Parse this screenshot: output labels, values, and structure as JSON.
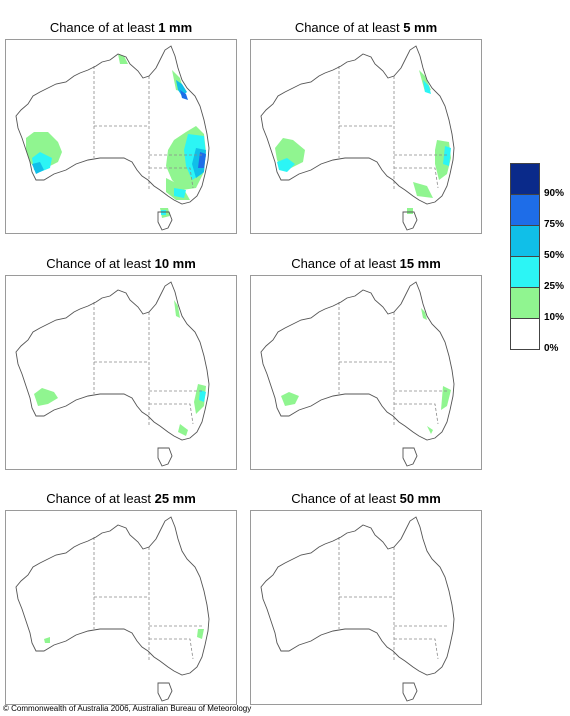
{
  "panels": [
    {
      "prefix": "Chance of at least ",
      "amount": "1 mm"
    },
    {
      "prefix": "Chance of at least ",
      "amount": "5 mm"
    },
    {
      "prefix": "Chance of at least ",
      "amount": "10 mm"
    },
    {
      "prefix": "Chance of at least ",
      "amount": "15 mm"
    },
    {
      "prefix": "Chance of at least ",
      "amount": "25 mm"
    },
    {
      "prefix": "Chance of at least ",
      "amount": "50 mm"
    }
  ],
  "legend": {
    "bins": [
      {
        "color": "#0a2a8a",
        "label": "90%"
      },
      {
        "color": "#1e6de8",
        "label": "75%"
      },
      {
        "color": "#10bfe8",
        "label": "50%"
      },
      {
        "color": "#2cf5f5",
        "label": "25%"
      },
      {
        "color": "#90f590",
        "label": "10%"
      },
      {
        "color": "#ffffff",
        "label": "0%"
      }
    ]
  },
  "footer": "© Commonwealth of Australia 2006, Australian Bureau of Meteorology"
}
